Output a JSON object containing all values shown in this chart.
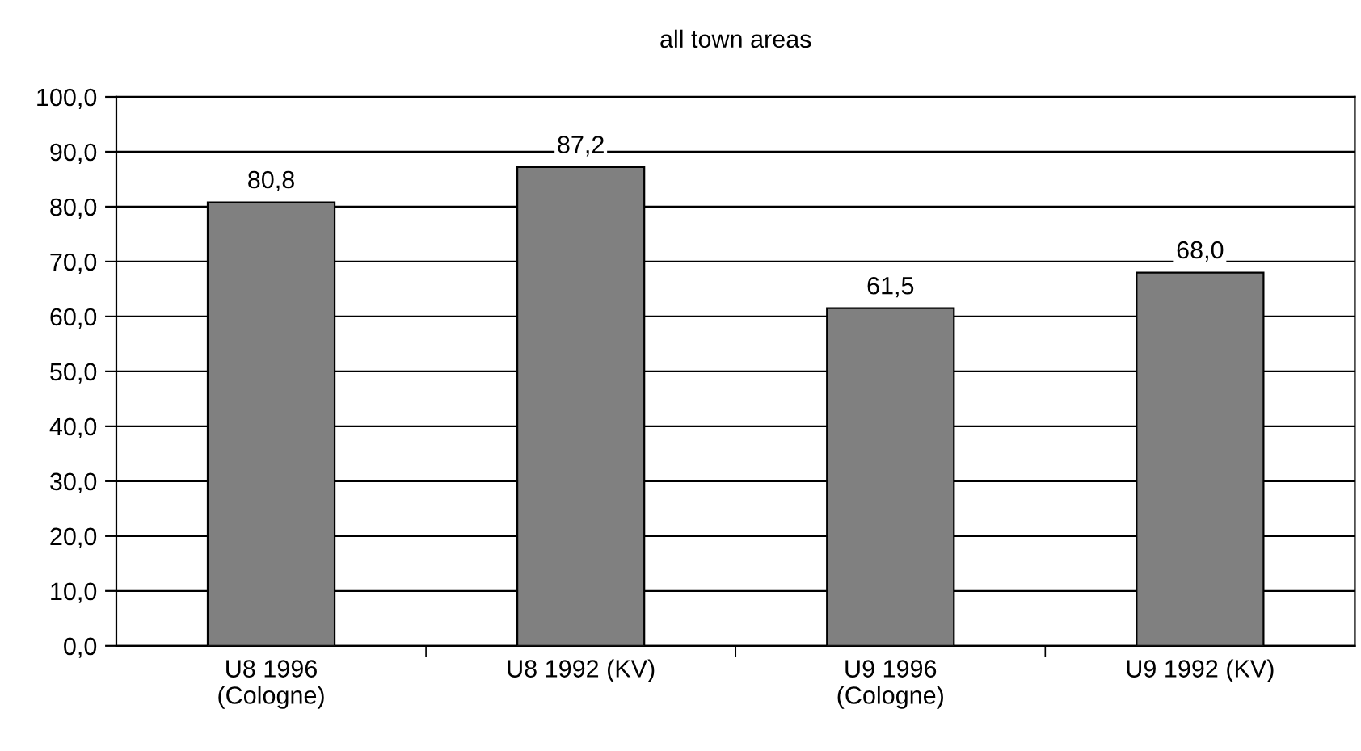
{
  "chart_data": {
    "type": "bar",
    "title": "all town areas",
    "categories": [
      "U8 1996\n(Cologne)",
      "U8 1992 (KV)",
      "U9 1996\n(Cologne)",
      "U9 1992 (KV)"
    ],
    "values": [
      80.8,
      87.2,
      61.5,
      68.0
    ],
    "value_labels": [
      "80,8",
      "87,2",
      "61,5",
      "68,0"
    ],
    "color": "#808080",
    "ylim": [
      0,
      100
    ],
    "yticks": [
      {
        "value": 0,
        "label": "0,0"
      },
      {
        "value": 10,
        "label": "10,0"
      },
      {
        "value": 20,
        "label": "20,0"
      },
      {
        "value": 30,
        "label": "30,0"
      },
      {
        "value": 40,
        "label": "40,0"
      },
      {
        "value": 50,
        "label": "50,0"
      },
      {
        "value": 60,
        "label": "60,0"
      },
      {
        "value": 70,
        "label": "70,0"
      },
      {
        "value": 80,
        "label": "80,0"
      },
      {
        "value": 90,
        "label": "90,0"
      },
      {
        "value": 100,
        "label": "100,0"
      }
    ],
    "grid": "y",
    "legend": false
  }
}
